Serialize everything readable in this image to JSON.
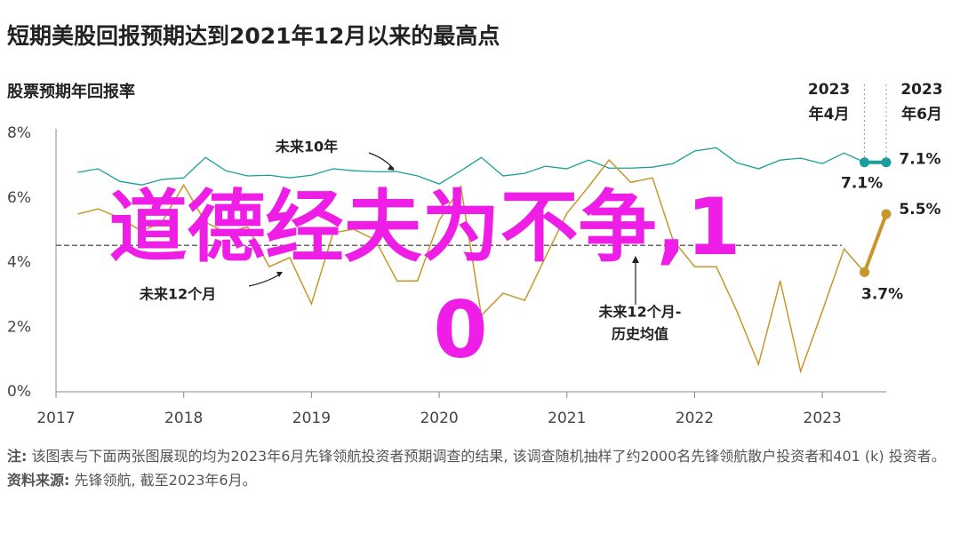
{
  "chart_data": {
    "type": "line",
    "title": "短期美股回报预期达到2021年12月以来的最高点",
    "subtitle": "股票预期年回报率",
    "x": [
      2017.17,
      2017.33,
      2017.5,
      2017.67,
      2017.83,
      2018.0,
      2018.17,
      2018.33,
      2018.5,
      2018.67,
      2018.83,
      2019.0,
      2019.17,
      2019.33,
      2019.5,
      2019.67,
      2019.83,
      2020.0,
      2020.17,
      2020.33,
      2020.5,
      2020.67,
      2020.83,
      2021.0,
      2021.17,
      2021.33,
      2021.5,
      2021.67,
      2021.83,
      2022.0,
      2022.17,
      2022.33,
      2022.5,
      2022.67,
      2022.83,
      2023.0,
      2023.17,
      2023.33,
      2023.5
    ],
    "series": [
      {
        "name": "未来10年",
        "color": "#1a9e9a",
        "values": [
          6.79,
          6.9,
          6.51,
          6.4,
          6.57,
          6.62,
          7.25,
          6.84,
          6.68,
          6.7,
          6.62,
          6.7,
          6.9,
          6.84,
          6.81,
          6.81,
          6.68,
          6.43,
          6.84,
          7.25,
          6.68,
          6.76,
          6.98,
          6.9,
          7.17,
          6.92,
          6.92,
          6.95,
          7.06,
          7.45,
          7.55,
          7.09,
          6.9,
          7.17,
          7.23,
          7.06,
          7.39,
          7.1,
          7.1
        ],
        "value_labels": [
          null,
          null,
          null,
          null,
          null,
          null,
          null,
          null,
          null,
          null,
          null,
          null,
          null,
          null,
          null,
          null,
          null,
          null,
          null,
          null,
          null,
          null,
          null,
          null,
          null,
          null,
          null,
          null,
          null,
          null,
          null,
          null,
          null,
          null,
          null,
          null,
          null,
          "7.1%",
          "7.1%"
        ]
      },
      {
        "name": "未来12个月",
        "color": "#c8962a",
        "values": [
          5.5,
          5.66,
          5.38,
          4.97,
          5.25,
          6.4,
          5.25,
          4.92,
          5.1,
          3.87,
          4.15,
          2.72,
          4.92,
          5.03,
          4.7,
          3.43,
          3.43,
          5.3,
          6.35,
          2.36,
          3.05,
          2.83,
          4.15,
          5.52,
          6.35,
          7.17,
          6.48,
          6.62,
          4.7,
          3.87,
          3.87,
          2.5,
          0.85,
          3.43,
          0.63,
          2.5,
          4.42,
          3.7,
          5.5
        ],
        "value_labels": [
          null,
          null,
          null,
          null,
          null,
          null,
          null,
          null,
          null,
          null,
          null,
          null,
          null,
          null,
          null,
          null,
          null,
          null,
          null,
          null,
          null,
          null,
          null,
          null,
          null,
          null,
          null,
          null,
          null,
          null,
          null,
          null,
          null,
          null,
          null,
          null,
          null,
          "3.7%",
          "5.5%"
        ]
      }
    ],
    "reference_line": {
      "value": 4.53,
      "color": "#666666",
      "label": [
        "未来12个月-",
        "历史均值"
      ]
    },
    "period_labels": [
      {
        "x": 2023.33,
        "label": [
          "2023",
          "年4月"
        ]
      },
      {
        "x": 2023.5,
        "label": [
          "2023",
          "年6月"
        ]
      }
    ],
    "xlim": [
      2017,
      2023.5
    ],
    "xticks": [
      2017,
      2018,
      2019,
      2020,
      2021,
      2022,
      2023
    ],
    "ylim": [
      0,
      8
    ],
    "yticks": [
      {
        "value": 0,
        "label": "0%"
      },
      {
        "value": 2,
        "label": "2%"
      },
      {
        "value": 4,
        "label": "4%"
      },
      {
        "value": 6,
        "label": "6%"
      },
      {
        "value": 8,
        "label": "8%"
      }
    ],
    "grid": false,
    "watermark": {
      "lines": [
        "道德经夫为不争,1",
        "0"
      ],
      "color": "#ee1ee6"
    },
    "notes": {
      "label": "注:",
      "text": "该图表与下面两张图展现的均为2023年6月先锋领航投资者预期调查的结果, 该调查随机抽样了约2000名先锋领航散户投资者和401 (k) 投资者。"
    },
    "source": {
      "label": "资料来源:",
      "text": "先锋领航, 截至2023年6月。"
    }
  }
}
